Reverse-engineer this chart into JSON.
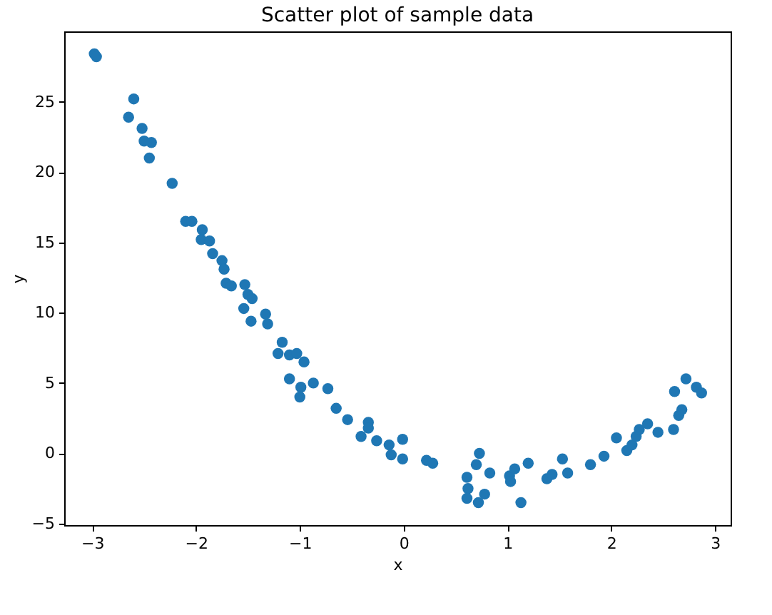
{
  "chart_data": {
    "type": "scatter",
    "title": "Scatter plot of sample data",
    "xlabel": "x",
    "ylabel": "y",
    "x": [
      -2.98,
      -2.96,
      -2.65,
      -2.6,
      -2.52,
      -2.5,
      -2.43,
      -2.45,
      -2.23,
      -2.1,
      -2.04,
      -1.94,
      -1.95,
      -1.87,
      -1.84,
      -1.75,
      -1.73,
      -1.71,
      -1.66,
      -1.53,
      -1.5,
      -1.54,
      -1.46,
      -1.47,
      -1.33,
      -1.31,
      -1.17,
      -1.21,
      -1.1,
      -1.03,
      -0.96,
      -1.1,
      -0.99,
      -1.0,
      -0.87,
      -0.73,
      -0.65,
      -0.54,
      -0.41,
      -0.34,
      -0.34,
      -0.26,
      -0.14,
      -0.01,
      -0.12,
      -0.01,
      0.22,
      0.28,
      0.61,
      0.62,
      0.61,
      0.72,
      0.78,
      0.7,
      0.73,
      0.83,
      1.02,
      1.03,
      1.07,
      1.2,
      1.13,
      1.38,
      1.43,
      1.53,
      1.58,
      1.8,
      1.93,
      2.05,
      2.15,
      2.2,
      2.24,
      2.27,
      2.35,
      2.45,
      2.6,
      2.61,
      2.65,
      2.68,
      2.72,
      2.82,
      2.87
    ],
    "series": [
      {
        "color": "#1f77b4",
        "values": [
          28.4,
          28.2,
          23.9,
          25.2,
          23.1,
          22.2,
          22.1,
          21.0,
          19.2,
          16.5,
          16.5,
          15.9,
          15.2,
          15.1,
          14.2,
          13.7,
          13.1,
          12.1,
          11.9,
          12.0,
          11.3,
          10.3,
          11.0,
          9.4,
          9.9,
          9.2,
          7.9,
          7.1,
          7.0,
          7.1,
          6.5,
          5.3,
          4.7,
          4.0,
          5.0,
          4.6,
          3.2,
          2.4,
          1.2,
          2.2,
          1.8,
          0.9,
          0.6,
          1.0,
          -0.1,
          -0.4,
          -0.5,
          -0.7,
          -1.7,
          -2.5,
          -3.2,
          -3.5,
          -2.9,
          -0.8,
          0.0,
          -1.4,
          -1.6,
          -2.0,
          -1.1,
          -0.7,
          -3.5,
          -1.8,
          -1.5,
          -0.4,
          -1.4,
          -0.8,
          -0.2,
          1.1,
          0.2,
          0.6,
          1.2,
          1.7,
          2.1,
          1.5,
          1.7,
          4.4,
          2.7,
          3.1,
          5.3,
          4.7,
          4.3
        ]
      }
    ],
    "xlim": [
      -3.27,
      3.15
    ],
    "ylim": [
      -5.1,
      30
    ],
    "xticks": [
      -3,
      -2,
      -1,
      0,
      1,
      2,
      3
    ],
    "yticks": [
      -5,
      0,
      5,
      10,
      15,
      20,
      25
    ],
    "marker": "circle",
    "grid": false
  }
}
